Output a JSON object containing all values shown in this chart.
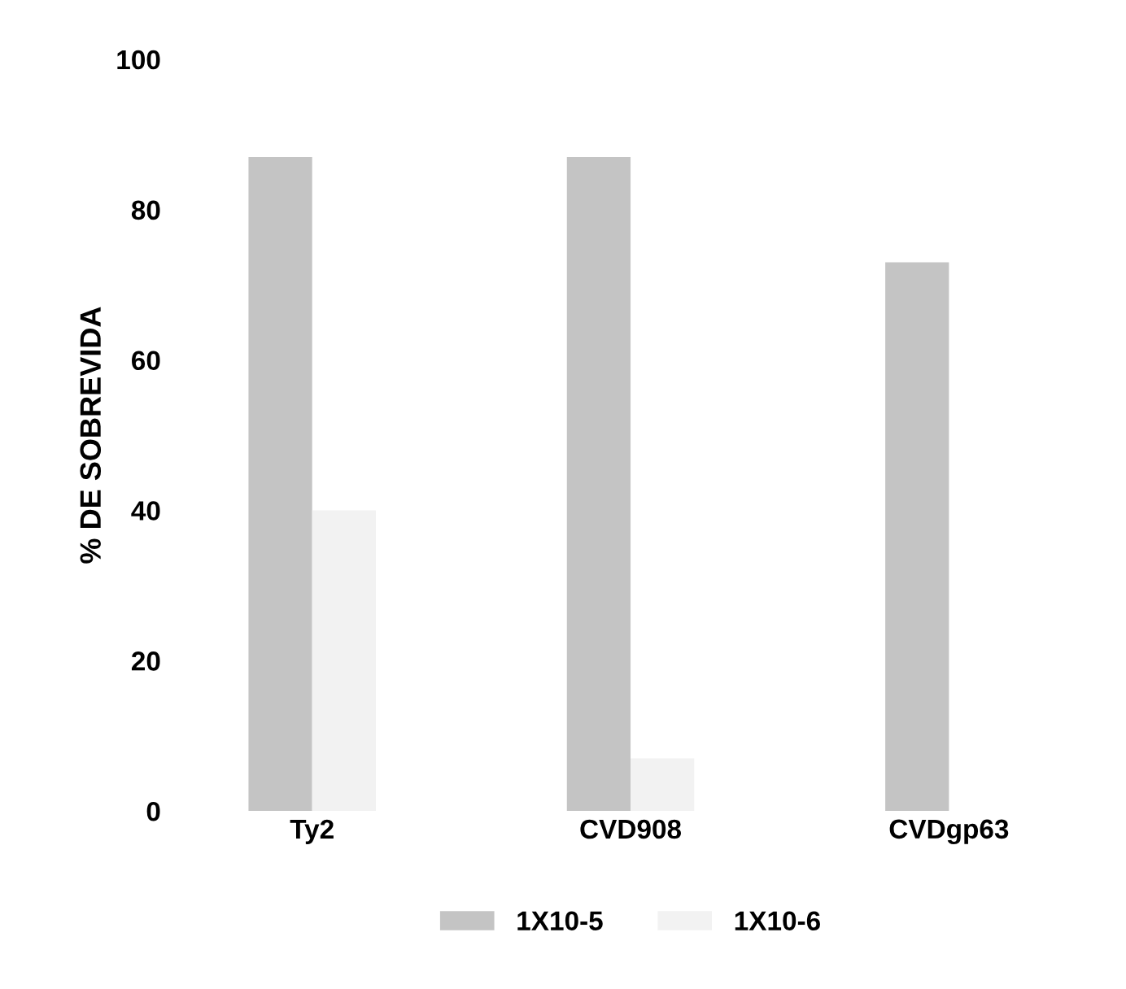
{
  "chart_data": {
    "type": "bar",
    "ylabel": "% DE SOBREVIDA",
    "categories": [
      "Ty2",
      "CVD908",
      "CVDgp63"
    ],
    "series": [
      {
        "name": "1X10-5",
        "color": "#c4c4c4",
        "values": [
          87,
          87,
          73
        ]
      },
      {
        "name": "1X10-6",
        "color": "#f2f2f2",
        "values": [
          40,
          7,
          0
        ]
      }
    ],
    "ylim": [
      0,
      100
    ],
    "yticks": [
      0,
      20,
      40,
      60,
      80,
      100
    ],
    "grid": false,
    "legend": "bottom"
  }
}
